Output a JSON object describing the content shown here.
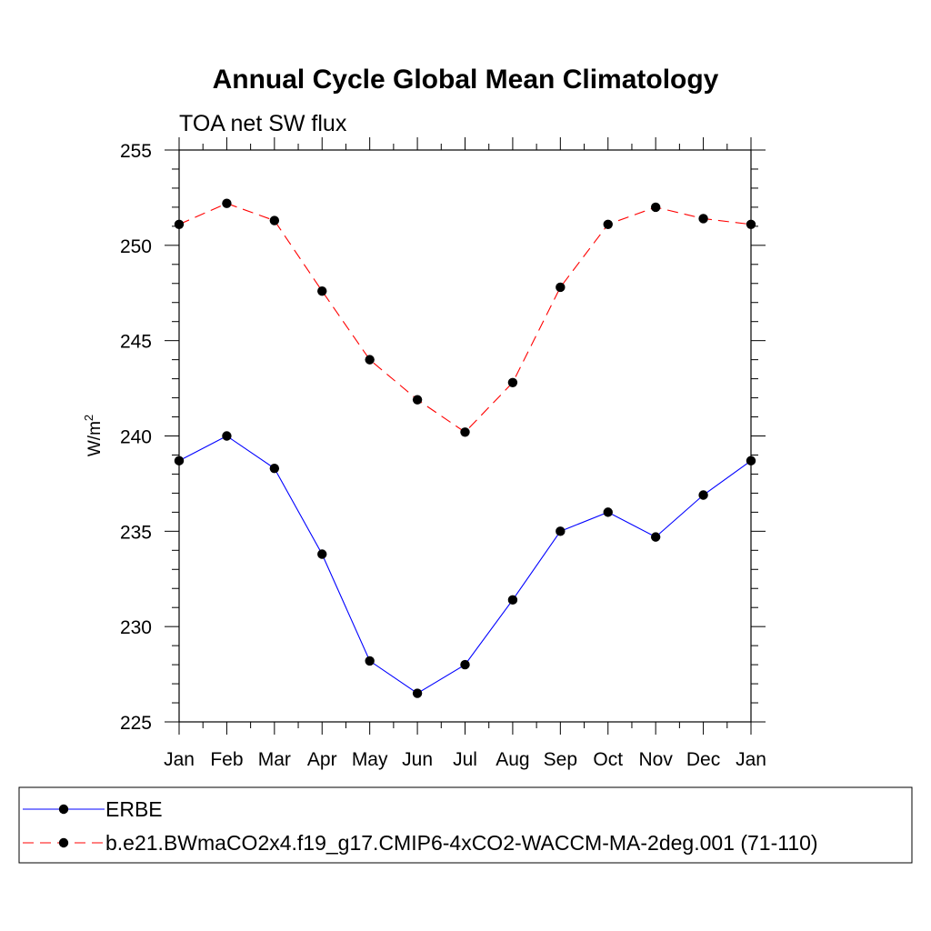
{
  "chart_data": {
    "type": "line",
    "title": "Annual Cycle Global Mean Climatology",
    "subtitle": "TOA net SW flux",
    "ylabel_base": "W/m",
    "ylabel_sup": "2",
    "xlabel": "",
    "categories": [
      "Jan",
      "Feb",
      "Mar",
      "Apr",
      "May",
      "Jun",
      "Jul",
      "Aug",
      "Sep",
      "Oct",
      "Nov",
      "Dec",
      "Jan"
    ],
    "ylim": [
      225,
      255
    ],
    "yticks": [
      225,
      230,
      235,
      240,
      245,
      250,
      255
    ],
    "series": [
      {
        "name": "ERBE",
        "color": "#0000ff",
        "dash": "solid",
        "values": [
          238.7,
          240.0,
          238.3,
          233.8,
          228.2,
          226.5,
          228.0,
          231.4,
          235.0,
          236.0,
          234.7,
          236.9,
          238.7
        ]
      },
      {
        "name": "b.e21.BWmaCO2x4.f19_g17.CMIP6-4xCO2-WACCM-MA-2deg.001 (71-110)",
        "color": "#ff0000",
        "dash": "dashed",
        "values": [
          251.1,
          252.2,
          251.3,
          247.6,
          244.0,
          241.9,
          240.2,
          242.8,
          247.8,
          251.1,
          252.0,
          251.4,
          251.1
        ]
      }
    ]
  }
}
